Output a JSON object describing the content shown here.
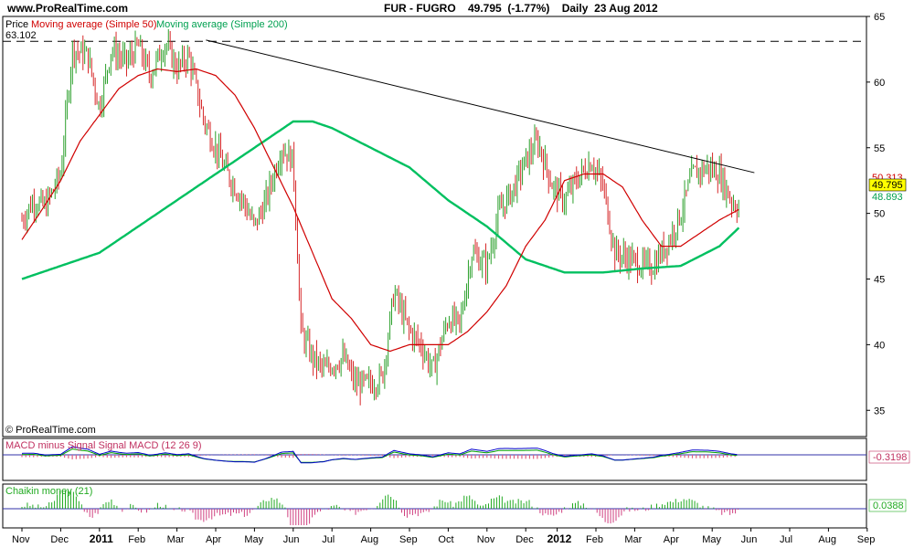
{
  "header": {
    "site": "www.ProRealTime.com",
    "title": "FUR - FUGRO    49.795  (-1.77%)    Daily  23 Aug 2012"
  },
  "colors": {
    "price_up": "#2ca02c",
    "price_down": "#d62728",
    "sma50": "#d00000",
    "sma200": "#00c060",
    "trendline": "#000000",
    "macd": "#0000cc",
    "signal": "#00a000",
    "hist_pos": "#e06080",
    "chaikin": "#22aa22",
    "chaikin_neg": "#d04080"
  },
  "chart_data": [
    {
      "type": "line",
      "panel": "price",
      "legend": {
        "price": "Price",
        "sma50": "Moving average (Simple 50)",
        "sma200": "Moving average (Simple 200)"
      },
      "y_range": [
        33,
        65
      ],
      "y_ticks": [
        35,
        40,
        45,
        50,
        55,
        60,
        65
      ],
      "x_ticks": [
        "Nov",
        "Dec",
        "2011",
        "Feb",
        "Mar",
        "Apr",
        "May",
        "Jun",
        "Jul",
        "Aug",
        "Sep",
        "Oct",
        "Nov",
        "Dec",
        "2012",
        "Feb",
        "Mar",
        "Apr",
        "May",
        "Jun",
        "Jul",
        "Aug",
        "Sep"
      ],
      "high_line": {
        "value": 63.102,
        "label": "63.102"
      },
      "last_price": {
        "value": 49.795,
        "label": "49.795"
      },
      "sma50_last": {
        "value": 50.313,
        "label": "50.313"
      },
      "sma200_last": {
        "value": 48.893,
        "label": "48.893"
      },
      "price_points": [
        [
          0,
          49.5
        ],
        [
          0.3,
          51
        ],
        [
          0.6,
          50.5
        ],
        [
          1.0,
          53
        ],
        [
          1.3,
          62.5
        ],
        [
          1.7,
          62
        ],
        [
          2.0,
          58
        ],
        [
          2.3,
          62.5
        ],
        [
          2.7,
          61.5
        ],
        [
          3.0,
          62.8
        ],
        [
          3.3,
          60.5
        ],
        [
          3.7,
          63
        ],
        [
          4.0,
          61
        ],
        [
          4.3,
          62
        ],
        [
          4.7,
          57
        ],
        [
          5.0,
          55
        ],
        [
          5.3,
          53
        ],
        [
          5.7,
          51
        ],
        [
          6.0,
          49
        ],
        [
          6.3,
          51
        ],
        [
          6.7,
          55
        ],
        [
          7.0,
          54
        ],
        [
          7.2,
          41
        ],
        [
          7.5,
          39
        ],
        [
          7.8,
          38
        ],
        [
          8.0,
          38.5
        ],
        [
          8.3,
          39
        ],
        [
          8.6,
          37
        ],
        [
          9.0,
          37
        ],
        [
          9.3,
          37.5
        ],
        [
          9.6,
          44
        ],
        [
          10.0,
          41
        ],
        [
          10.3,
          40
        ],
        [
          10.6,
          38
        ],
        [
          11.0,
          42
        ],
        [
          11.3,
          41.5
        ],
        [
          11.6,
          47
        ],
        [
          12.0,
          46
        ],
        [
          12.3,
          50
        ],
        [
          12.7,
          52
        ],
        [
          13.0,
          54
        ],
        [
          13.3,
          55.5
        ],
        [
          13.7,
          52
        ],
        [
          14.0,
          51
        ],
        [
          14.3,
          52.5
        ],
        [
          14.7,
          54
        ],
        [
          15.0,
          52
        ],
        [
          15.3,
          47
        ],
        [
          15.7,
          46.5
        ],
        [
          16.0,
          46
        ],
        [
          16.3,
          46
        ],
        [
          16.7,
          48
        ],
        [
          17.0,
          50
        ],
        [
          17.3,
          53
        ],
        [
          17.7,
          53.5
        ],
        [
          18.0,
          53
        ],
        [
          18.3,
          51
        ],
        [
          18.5,
          50.4
        ]
      ],
      "sma50_points": [
        [
          0,
          48
        ],
        [
          0.5,
          50.2
        ],
        [
          1.0,
          52.5
        ],
        [
          1.5,
          55.5
        ],
        [
          2.0,
          57.5
        ],
        [
          2.5,
          59.5
        ],
        [
          3.0,
          60.5
        ],
        [
          3.5,
          61
        ],
        [
          4.0,
          60.8
        ],
        [
          4.5,
          61
        ],
        [
          5.0,
          60.5
        ],
        [
          5.5,
          59
        ],
        [
          6.0,
          56.5
        ],
        [
          6.5,
          53.5
        ],
        [
          7.0,
          50.5
        ],
        [
          7.5,
          47
        ],
        [
          8.0,
          43.5
        ],
        [
          8.5,
          42
        ],
        [
          9.0,
          40
        ],
        [
          9.5,
          39.5
        ],
        [
          10.0,
          40
        ],
        [
          10.5,
          40
        ],
        [
          11.0,
          40
        ],
        [
          11.5,
          41
        ],
        [
          12.0,
          42.5
        ],
        [
          12.5,
          44.5
        ],
        [
          13.0,
          47.5
        ],
        [
          13.5,
          49.5
        ],
        [
          14.0,
          52.5
        ],
        [
          14.5,
          53
        ],
        [
          15.0,
          53
        ],
        [
          15.5,
          52
        ],
        [
          16.0,
          49.5
        ],
        [
          16.5,
          47.5
        ],
        [
          17.0,
          47.5
        ],
        [
          17.5,
          48.5
        ],
        [
          18.0,
          49.5
        ],
        [
          18.5,
          50.3
        ]
      ],
      "sma200_points": [
        [
          0,
          45
        ],
        [
          1,
          46
        ],
        [
          2,
          47
        ],
        [
          3,
          49
        ],
        [
          4,
          51
        ],
        [
          5,
          53
        ],
        [
          6,
          55
        ],
        [
          7,
          57
        ],
        [
          7.5,
          57
        ],
        [
          8,
          56.5
        ],
        [
          9,
          55
        ],
        [
          10,
          53.5
        ],
        [
          11,
          51
        ],
        [
          12,
          49
        ],
        [
          13,
          46.5
        ],
        [
          14,
          45.5
        ],
        [
          15,
          45.5
        ],
        [
          16,
          45.8
        ],
        [
          17,
          46
        ],
        [
          18,
          47.5
        ],
        [
          18.5,
          48.9
        ]
      ],
      "trendline": [
        [
          4.75,
          63.2
        ],
        [
          18.9,
          53.1
        ]
      ]
    },
    {
      "type": "line",
      "panel": "macd",
      "legend": "MACD minus Signal Signal MACD (12 26 9)",
      "last_value": {
        "value": -0.3198,
        "label": "-0.3198"
      }
    },
    {
      "type": "bar",
      "panel": "chaikin",
      "legend": "Chaikin money (21)",
      "last_value": {
        "value": 0.0388,
        "label": "0.0388"
      }
    }
  ],
  "footer": {
    "copyright": "© ProRealTime.com"
  }
}
